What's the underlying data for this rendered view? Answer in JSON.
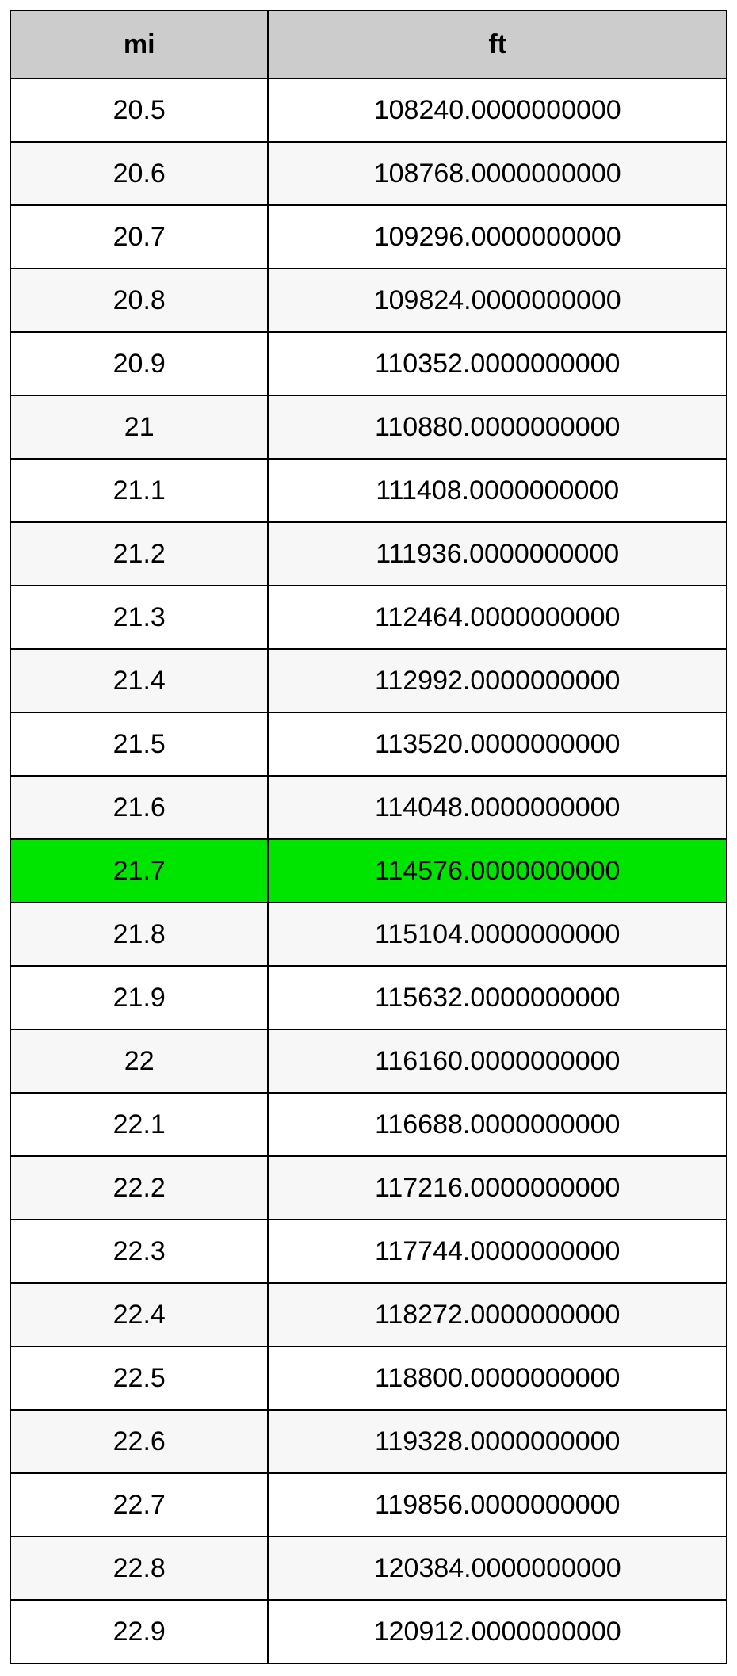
{
  "table": {
    "type": "table",
    "columns": [
      "mi",
      "ft"
    ],
    "column_widths": [
      "36%",
      "64%"
    ],
    "header_bg": "#cccccc",
    "row_bg_even": "#ffffff",
    "row_bg_odd": "#f7f7f7",
    "highlight_bg": "#00e500",
    "border_color": "#000000",
    "text_color": "#000000",
    "header_fontsize": 34,
    "header_fontweight": "bold",
    "cell_fontsize": 34,
    "cell_fontweight": "normal",
    "highlighted_row_index": 12,
    "rows": [
      {
        "mi": "20.5",
        "ft": "108240.0000000000",
        "highlight": false
      },
      {
        "mi": "20.6",
        "ft": "108768.0000000000",
        "highlight": false
      },
      {
        "mi": "20.7",
        "ft": "109296.0000000000",
        "highlight": false
      },
      {
        "mi": "20.8",
        "ft": "109824.0000000000",
        "highlight": false
      },
      {
        "mi": "20.9",
        "ft": "110352.0000000000",
        "highlight": false
      },
      {
        "mi": "21",
        "ft": "110880.0000000000",
        "highlight": false
      },
      {
        "mi": "21.1",
        "ft": "111408.0000000000",
        "highlight": false
      },
      {
        "mi": "21.2",
        "ft": "111936.0000000000",
        "highlight": false
      },
      {
        "mi": "21.3",
        "ft": "112464.0000000000",
        "highlight": false
      },
      {
        "mi": "21.4",
        "ft": "112992.0000000000",
        "highlight": false
      },
      {
        "mi": "21.5",
        "ft": "113520.0000000000",
        "highlight": false
      },
      {
        "mi": "21.6",
        "ft": "114048.0000000000",
        "highlight": false
      },
      {
        "mi": "21.7",
        "ft": "114576.0000000000",
        "highlight": true
      },
      {
        "mi": "21.8",
        "ft": "115104.0000000000",
        "highlight": false
      },
      {
        "mi": "21.9",
        "ft": "115632.0000000000",
        "highlight": false
      },
      {
        "mi": "22",
        "ft": "116160.0000000000",
        "highlight": false
      },
      {
        "mi": "22.1",
        "ft": "116688.0000000000",
        "highlight": false
      },
      {
        "mi": "22.2",
        "ft": "117216.0000000000",
        "highlight": false
      },
      {
        "mi": "22.3",
        "ft": "117744.0000000000",
        "highlight": false
      },
      {
        "mi": "22.4",
        "ft": "118272.0000000000",
        "highlight": false
      },
      {
        "mi": "22.5",
        "ft": "118800.0000000000",
        "highlight": false
      },
      {
        "mi": "22.6",
        "ft": "119328.0000000000",
        "highlight": false
      },
      {
        "mi": "22.7",
        "ft": "119856.0000000000",
        "highlight": false
      },
      {
        "mi": "22.8",
        "ft": "120384.0000000000",
        "highlight": false
      },
      {
        "mi": "22.9",
        "ft": "120912.0000000000",
        "highlight": false
      }
    ]
  }
}
